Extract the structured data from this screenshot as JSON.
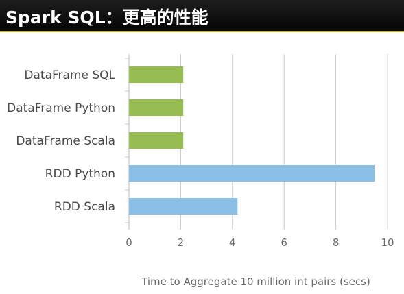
{
  "slide": {
    "title": "Spark SQL：更高的性能"
  },
  "colors": {
    "dataframe_bar": "#97bd52",
    "rdd_bar": "#8abfe6",
    "grid": "#c9c9c9",
    "title_bg": "#111111",
    "title_accent": "#c8b02a"
  },
  "chart_data": {
    "type": "bar",
    "orientation": "horizontal",
    "categories": [
      "DataFrame SQL",
      "DataFrame Python",
      "DataFrame Scala",
      "RDD Python",
      "RDD Scala"
    ],
    "values": [
      2.1,
      2.1,
      2.1,
      9.5,
      4.2
    ],
    "bar_colors": [
      "#97bd52",
      "#97bd52",
      "#97bd52",
      "#8abfe6",
      "#8abfe6"
    ],
    "xlabel": "Time to Aggregate 10 million int pairs (secs)",
    "xlim": [
      0,
      10
    ],
    "xticks": [
      0,
      2,
      4,
      6,
      8,
      10
    ],
    "grid": "vertical"
  }
}
